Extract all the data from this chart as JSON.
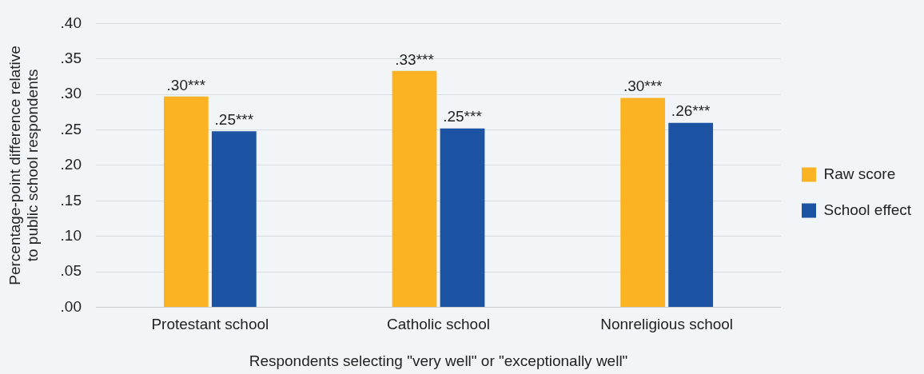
{
  "chart_data": {
    "type": "bar",
    "categories": [
      "Protestant school",
      "Catholic school",
      "Nonreligious school"
    ],
    "series": [
      {
        "name": "Raw score",
        "color": "#fbb323",
        "values": [
          0.297,
          0.333,
          0.295
        ],
        "value_labels": [
          ".30***",
          ".33***",
          ".30***"
        ]
      },
      {
        "name": "School effect",
        "color": "#1c53a3",
        "values": [
          0.248,
          0.252,
          0.26
        ],
        "value_labels": [
          ".25***",
          ".25***",
          ".26***"
        ]
      }
    ],
    "xlabel": "Respondents selecting \"very well\" or \"exceptionally well\"",
    "ylabel": "Percentage-point difference relative\nto public school respondents",
    "ylim": [
      0,
      0.4
    ],
    "yticks": [
      {
        "value": 0,
        "label": ".00"
      },
      {
        "value": 0.05,
        "label": ".05"
      },
      {
        "value": 0.1,
        "label": ".10"
      },
      {
        "value": 0.15,
        "label": ".15"
      },
      {
        "value": 0.2,
        "label": ".20"
      },
      {
        "value": 0.25,
        "label": ".25"
      },
      {
        "value": 0.3,
        "label": ".30"
      },
      {
        "value": 0.35,
        "label": ".35"
      },
      {
        "value": 0.4,
        "label": ".40"
      }
    ],
    "grid": "y",
    "legend": "right"
  }
}
